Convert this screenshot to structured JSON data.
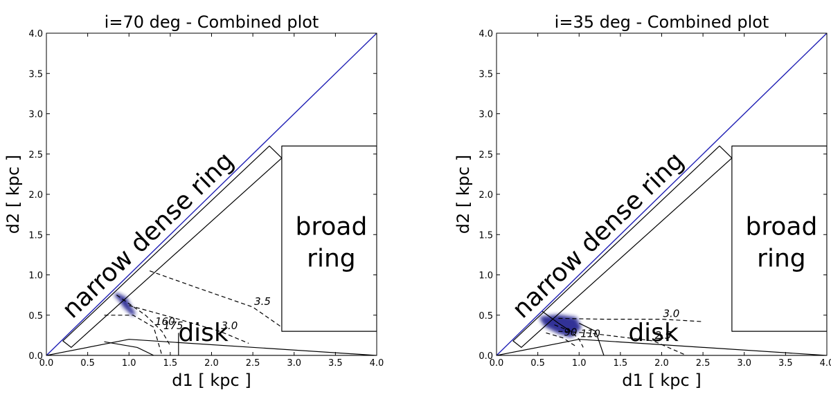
{
  "chart_data": [
    {
      "type": "contour",
      "title": "i=70 deg - Combined plot",
      "xlabel": "d1 [ kpc ]",
      "ylabel": "d2 [ kpc ]",
      "xlim": [
        0.0,
        4.0
      ],
      "ylim": [
        0.0,
        4.0
      ],
      "xticks": [
        "0.0",
        "0.5",
        "1.0",
        "1.5",
        "2.0",
        "2.5",
        "3.0",
        "3.5",
        "4.0"
      ],
      "yticks": [
        "0.0",
        "0.5",
        "1.0",
        "1.5",
        "2.0",
        "2.5",
        "3.0",
        "3.5",
        "4.0"
      ],
      "diagonal_color": "#1f1fb4",
      "regions": [
        {
          "label": "narrow dense ring",
          "outline": [
            [
              0.2,
              0.18
            ],
            [
              2.7,
              2.6
            ],
            [
              2.85,
              2.45
            ],
            [
              0.3,
              0.1
            ]
          ]
        },
        {
          "label": "broad ring",
          "outline": [
            [
              2.85,
              0.3
            ],
            [
              2.85,
              2.6
            ],
            [
              4.0,
              2.6
            ],
            [
              4.0,
              0.3
            ]
          ]
        },
        {
          "label": "disk",
          "outline": [
            [
              0.0,
              0.0
            ],
            [
              1.0,
              0.2
            ],
            [
              4.0,
              0.0
            ]
          ]
        }
      ],
      "contours": [
        {
          "label": "3.5",
          "style": "dashed",
          "points": [
            [
              1.25,
              1.05
            ],
            [
              1.8,
              0.85
            ],
            [
              2.5,
              0.6
            ],
            [
              2.85,
              0.35
            ]
          ]
        },
        {
          "label": "3.0",
          "style": "dashed",
          "points": [
            [
              1.0,
              0.62
            ],
            [
              1.6,
              0.45
            ],
            [
              2.1,
              0.3
            ],
            [
              2.45,
              0.15
            ]
          ]
        },
        {
          "label": "175",
          "style": "dashed",
          "points": [
            [
              0.85,
              0.75
            ],
            [
              1.2,
              0.5
            ],
            [
              1.4,
              0.3
            ],
            [
              1.5,
              0.12
            ]
          ]
        },
        {
          "label": "160",
          "style": "dashed",
          "points": [
            [
              0.7,
              0.5
            ],
            [
              1.05,
              0.5
            ],
            [
              1.3,
              0.35
            ],
            [
              1.4,
              0.0
            ]
          ]
        },
        {
          "label": "",
          "style": "solid",
          "points": [
            [
              1.6,
              0.28
            ],
            [
              1.6,
              0.0
            ]
          ]
        },
        {
          "label": "",
          "style": "solid",
          "points": [
            [
              0.7,
              0.17
            ],
            [
              1.1,
              0.1
            ],
            [
              1.3,
              0.0
            ]
          ]
        }
      ],
      "blobs": [
        {
          "color": "#1c1c8c",
          "points": [
            [
              0.85,
              0.75
            ],
            [
              0.95,
              0.7
            ],
            [
              1.0,
              0.6
            ],
            [
              1.05,
              0.52
            ],
            [
              0.95,
              0.62
            ],
            [
              0.9,
              0.7
            ]
          ]
        }
      ]
    },
    {
      "type": "contour",
      "title": "i=35 deg - Combined plot",
      "xlabel": "d1 [ kpc ]",
      "ylabel": "d2 [ kpc ]",
      "xlim": [
        0.0,
        4.0
      ],
      "ylim": [
        0.0,
        4.0
      ],
      "xticks": [
        "0.0",
        "0.5",
        "1.0",
        "1.5",
        "2.0",
        "2.5",
        "3.0",
        "3.5",
        "4.0"
      ],
      "yticks": [
        "0.0",
        "0.5",
        "1.0",
        "1.5",
        "2.0",
        "2.5",
        "3.0",
        "3.5",
        "4.0"
      ],
      "diagonal_color": "#1f1fb4",
      "regions": [
        {
          "label": "narrow dense ring",
          "outline": [
            [
              0.2,
              0.18
            ],
            [
              2.7,
              2.6
            ],
            [
              2.85,
              2.45
            ],
            [
              0.3,
              0.1
            ]
          ]
        },
        {
          "label": "broad ring",
          "outline": [
            [
              2.85,
              0.3
            ],
            [
              2.85,
              2.6
            ],
            [
              4.0,
              2.6
            ],
            [
              4.0,
              0.3
            ]
          ]
        },
        {
          "label": "disk",
          "outline": [
            [
              0.0,
              0.0
            ],
            [
              1.0,
              0.2
            ],
            [
              4.0,
              0.0
            ]
          ]
        }
      ],
      "contours": [
        {
          "label": "3.0",
          "style": "dashed",
          "points": [
            [
              0.75,
              0.46
            ],
            [
              1.3,
              0.45
            ],
            [
              2.0,
              0.45
            ],
            [
              2.5,
              0.42
            ]
          ]
        },
        {
          "label": "2.5",
          "style": "dashed",
          "points": [
            [
              0.75,
              0.3
            ],
            [
              1.1,
              0.28
            ],
            [
              1.9,
              0.18
            ],
            [
              2.3,
              0.0
            ]
          ]
        },
        {
          "label": "110",
          "style": "dashed",
          "points": [
            [
              0.7,
              0.38
            ],
            [
              0.9,
              0.3
            ],
            [
              1.0,
              0.2
            ],
            [
              1.05,
              0.1
            ]
          ]
        },
        {
          "label": "90",
          "style": "dashed",
          "points": [
            [
              0.6,
              0.28
            ],
            [
              0.8,
              0.22
            ],
            [
              0.95,
              0.12
            ]
          ]
        },
        {
          "label": "",
          "style": "solid",
          "points": [
            [
              1.0,
              0.4
            ],
            [
              1.2,
              0.3
            ],
            [
              1.3,
              0.0
            ]
          ]
        },
        {
          "label": "",
          "style": "solid",
          "points": [
            [
              0.55,
              0.55
            ],
            [
              0.75,
              0.4
            ],
            [
              0.9,
              0.3
            ]
          ]
        }
      ],
      "blobs": [
        {
          "color": "#1c1c8c",
          "points": [
            [
              0.55,
              0.46
            ],
            [
              0.75,
              0.48
            ],
            [
              0.95,
              0.45
            ],
            [
              1.0,
              0.35
            ],
            [
              0.9,
              0.25
            ],
            [
              0.75,
              0.3
            ],
            [
              0.6,
              0.38
            ]
          ]
        }
      ]
    }
  ]
}
